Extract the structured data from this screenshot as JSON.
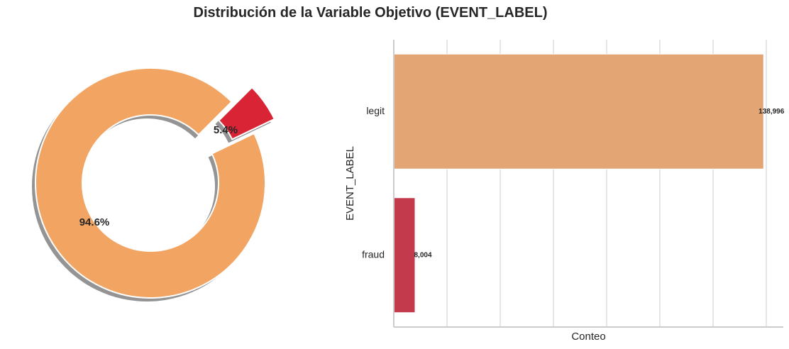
{
  "title": "Distribución de la Variable Objetivo (EVENT_LABEL)",
  "colors": {
    "legit": "#f2a462",
    "fraud": "#d92436",
    "legit_bar": "#e2a573",
    "fraud_bar": "#c23a4b",
    "grid": "#cccccc",
    "text": "#262626"
  },
  "chart_data": [
    {
      "type": "pie",
      "variant": "donut",
      "labels": [],
      "values": [
        94.6,
        5.4
      ],
      "value_labels": [
        "94.6%",
        "5.4%"
      ],
      "categories": [
        "legit",
        "fraud"
      ],
      "exploded": [
        false,
        true
      ],
      "shadow": true
    },
    {
      "type": "bar",
      "orientation": "horizontal",
      "categories": [
        "legit",
        "fraud"
      ],
      "values": [
        138996,
        8004
      ],
      "value_labels": [
        "138,996",
        "8,004"
      ],
      "xlabel": "Conteo",
      "ylabel": "EVENT_LABEL",
      "xlim": [
        0,
        140000
      ],
      "grid": "vertical",
      "x_gridlines": [
        0,
        20000,
        40000,
        60000,
        80000,
        100000,
        120000,
        140000
      ]
    }
  ]
}
